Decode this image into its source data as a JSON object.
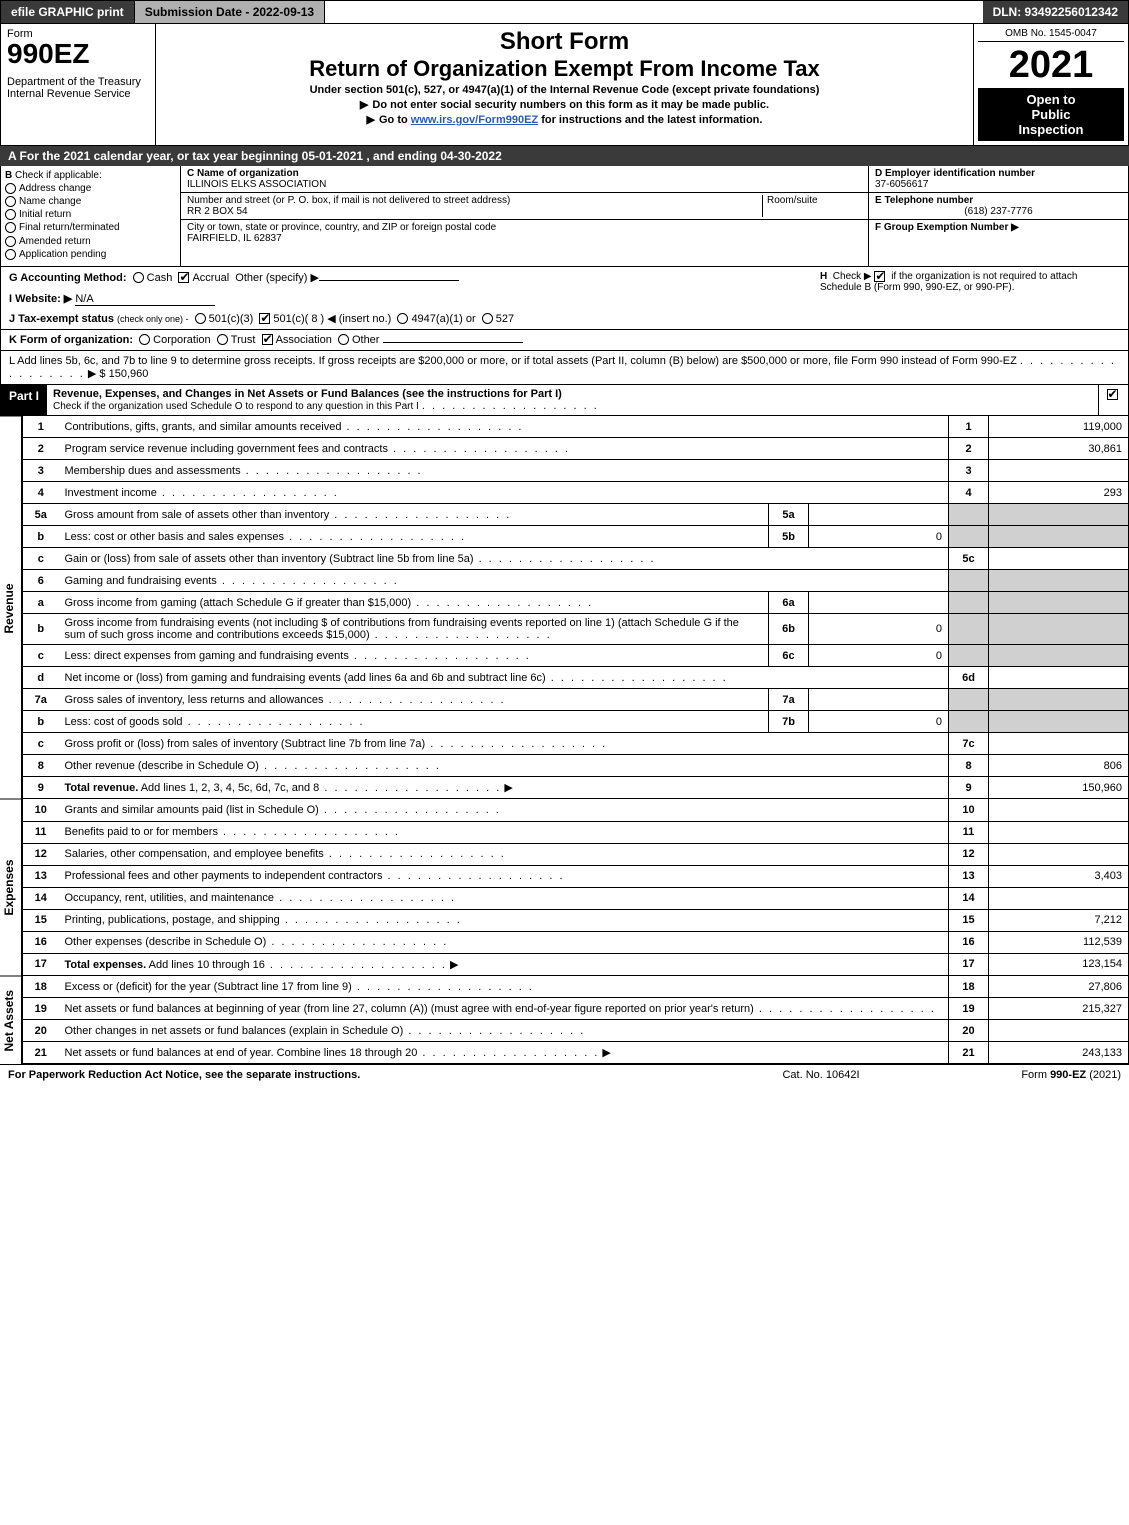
{
  "top": {
    "efile": "efile GRAPHIC print",
    "submission": "Submission Date - 2022-09-13",
    "dln": "DLN: 93492256012342"
  },
  "header": {
    "form_word": "Form",
    "form_number": "990EZ",
    "dept": "Department of the Treasury",
    "irs": "Internal Revenue Service",
    "short": "Short Form",
    "title": "Return of Organization Exempt From Income Tax",
    "subtitle": "Under section 501(c), 527, or 4947(a)(1) of the Internal Revenue Code (except private foundations)",
    "warn": "Do not enter social security numbers on this form as it may be made public.",
    "goto_pre": "Go to ",
    "goto_link": "www.irs.gov/Form990EZ",
    "goto_post": " for instructions and the latest information.",
    "omb": "OMB No. 1545-0047",
    "year": "2021",
    "open1": "Open to",
    "open2": "Public",
    "open3": "Inspection"
  },
  "line_a": "A  For the 2021 calendar year, or tax year beginning 05-01-2021 , and ending 04-30-2022",
  "section_b": {
    "b_label": "B",
    "check_if": "Check if applicable:",
    "opts": [
      "Address change",
      "Name change",
      "Initial return",
      "Final return/terminated",
      "Amended return",
      "Application pending"
    ],
    "c_label": "C Name of organization",
    "org_name": "ILLINOIS ELKS ASSOCIATION",
    "street_label": "Number and street (or P. O. box, if mail is not delivered to street address)",
    "room_label": "Room/suite",
    "street": "RR 2 BOX 54",
    "city_label": "City or town, state or province, country, and ZIP or foreign postal code",
    "city": "FAIRFIELD, IL  62837",
    "d_label": "D Employer identification number",
    "ein": "37-6056617",
    "e_label": "E Telephone number",
    "phone": "(618) 237-7776",
    "f_label": "F Group Exemption Number ▶"
  },
  "row_g": {
    "g_label": "G Accounting Method:",
    "cash": "Cash",
    "accrual": "Accrual",
    "other": "Other (specify) ▶",
    "h_text": "Check ▶",
    "h_text2": "if the organization is not required to attach Schedule B (Form 990, 990-EZ, or 990-PF).",
    "i_label": "I Website: ▶",
    "website": "N/A",
    "j_label": "J Tax-exempt status",
    "j_sub": "(check only one) -",
    "j_501c3": "501(c)(3)",
    "j_501c": "501(c)( 8 ) ◀ (insert no.)",
    "j_4947": "4947(a)(1) or",
    "j_527": "527"
  },
  "line_k": {
    "label": "K Form of organization:",
    "corp": "Corporation",
    "trust": "Trust",
    "assoc": "Association",
    "other": "Other"
  },
  "line_l": {
    "text": "L Add lines 5b, 6c, and 7b to line 9 to determine gross receipts. If gross receipts are $200,000 or more, or if total assets (Part II, column (B) below) are $500,000 or more, file Form 990 instead of Form 990-EZ",
    "amount": "$ 150,960"
  },
  "part1": {
    "label": "Part I",
    "title": "Revenue, Expenses, and Changes in Net Assets or Fund Balances (see the instructions for Part I)",
    "check": "Check if the organization used Schedule O to respond to any question in this Part I"
  },
  "revenue": [
    {
      "n": "1",
      "d": "Contributions, gifts, grants, and similar amounts received",
      "ln": "1",
      "amt": "119,000"
    },
    {
      "n": "2",
      "d": "Program service revenue including government fees and contracts",
      "ln": "2",
      "amt": "30,861"
    },
    {
      "n": "3",
      "d": "Membership dues and assessments",
      "ln": "3",
      "amt": ""
    },
    {
      "n": "4",
      "d": "Investment income",
      "ln": "4",
      "amt": "293"
    },
    {
      "n": "5a",
      "d": "Gross amount from sale of assets other than inventory",
      "sub": "5a",
      "subv": "",
      "shade": true
    },
    {
      "n": "b",
      "d": "Less: cost or other basis and sales expenses",
      "sub": "5b",
      "subv": "0",
      "shade": true
    },
    {
      "n": "c",
      "d": "Gain or (loss) from sale of assets other than inventory (Subtract line 5b from line 5a)",
      "ln": "5c",
      "amt": ""
    },
    {
      "n": "6",
      "d": "Gaming and fundraising events",
      "shadeall": true
    },
    {
      "n": "a",
      "d": "Gross income from gaming (attach Schedule G if greater than $15,000)",
      "sub": "6a",
      "subv": "",
      "shade": true
    },
    {
      "n": "b",
      "d": "Gross income from fundraising events (not including $               of contributions from fundraising events reported on line 1) (attach Schedule G if the sum of such gross income and contributions exceeds $15,000)",
      "sub": "6b",
      "subv": "0",
      "shade": true
    },
    {
      "n": "c",
      "d": "Less: direct expenses from gaming and fundraising events",
      "sub": "6c",
      "subv": "0",
      "shade": true
    },
    {
      "n": "d",
      "d": "Net income or (loss) from gaming and fundraising events (add lines 6a and 6b and subtract line 6c)",
      "ln": "6d",
      "amt": ""
    },
    {
      "n": "7a",
      "d": "Gross sales of inventory, less returns and allowances",
      "sub": "7a",
      "subv": "",
      "shade": true
    },
    {
      "n": "b",
      "d": "Less: cost of goods sold",
      "sub": "7b",
      "subv": "0",
      "shade": true
    },
    {
      "n": "c",
      "d": "Gross profit or (loss) from sales of inventory (Subtract line 7b from line 7a)",
      "ln": "7c",
      "amt": ""
    },
    {
      "n": "8",
      "d": "Other revenue (describe in Schedule O)",
      "ln": "8",
      "amt": "806"
    },
    {
      "n": "9",
      "d": "Total revenue. Add lines 1, 2, 3, 4, 5c, 6d, 7c, and 8",
      "ln": "9",
      "amt": "150,960",
      "bold": true,
      "arrow": true
    }
  ],
  "expenses": [
    {
      "n": "10",
      "d": "Grants and similar amounts paid (list in Schedule O)",
      "ln": "10",
      "amt": ""
    },
    {
      "n": "11",
      "d": "Benefits paid to or for members",
      "ln": "11",
      "amt": ""
    },
    {
      "n": "12",
      "d": "Salaries, other compensation, and employee benefits",
      "ln": "12",
      "amt": ""
    },
    {
      "n": "13",
      "d": "Professional fees and other payments to independent contractors",
      "ln": "13",
      "amt": "3,403"
    },
    {
      "n": "14",
      "d": "Occupancy, rent, utilities, and maintenance",
      "ln": "14",
      "amt": ""
    },
    {
      "n": "15",
      "d": "Printing, publications, postage, and shipping",
      "ln": "15",
      "amt": "7,212"
    },
    {
      "n": "16",
      "d": "Other expenses (describe in Schedule O)",
      "ln": "16",
      "amt": "112,539"
    },
    {
      "n": "17",
      "d": "Total expenses. Add lines 10 through 16",
      "ln": "17",
      "amt": "123,154",
      "bold": true,
      "arrow": true
    }
  ],
  "netassets": [
    {
      "n": "18",
      "d": "Excess or (deficit) for the year (Subtract line 17 from line 9)",
      "ln": "18",
      "amt": "27,806"
    },
    {
      "n": "19",
      "d": "Net assets or fund balances at beginning of year (from line 27, column (A)) (must agree with end-of-year figure reported on prior year's return)",
      "ln": "19",
      "amt": "215,327"
    },
    {
      "n": "20",
      "d": "Other changes in net assets or fund balances (explain in Schedule O)",
      "ln": "20",
      "amt": ""
    },
    {
      "n": "21",
      "d": "Net assets or fund balances at end of year. Combine lines 18 through 20",
      "ln": "21",
      "amt": "243,133",
      "arrow": true
    }
  ],
  "vlabels": {
    "revenue": "Revenue",
    "expenses": "Expenses",
    "netassets": "Net Assets"
  },
  "footer": {
    "left": "For Paperwork Reduction Act Notice, see the separate instructions.",
    "center": "Cat. No. 10642I",
    "right_pre": "Form ",
    "right_bold": "990-EZ",
    "right_post": " (2021)"
  },
  "colors": {
    "dark": "#3a3a3a",
    "gray": "#b0b0b0",
    "shade": "#d0d0d0",
    "link": "#2a5db0"
  }
}
